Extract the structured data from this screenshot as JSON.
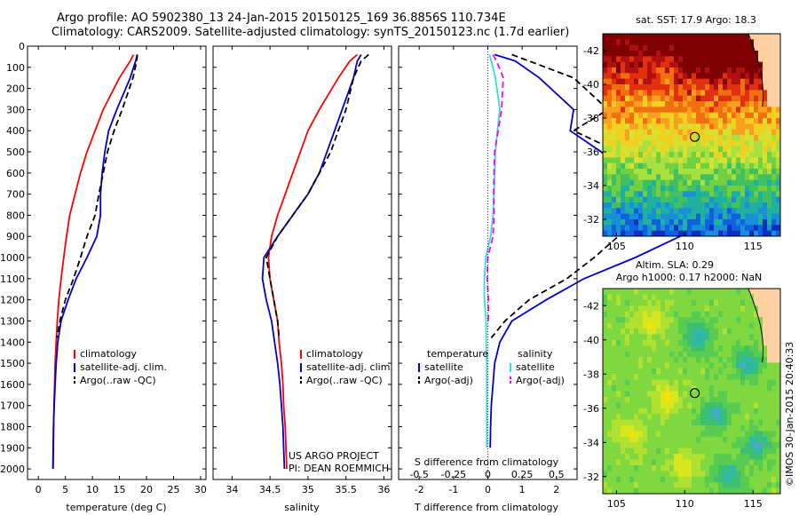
{
  "header": {
    "line1": "Argo profile: AO 5902380_13 24-Jan-2015 20150125_169 36.8856S 110.734E",
    "line2": "Climatology: CARS2009. Satellite-adjusted climatology: synTS_20150123.nc (1.7d earlier)"
  },
  "colors": {
    "climatology": "#ff0000",
    "satellite": "#0000cc",
    "argo": "#000000",
    "salinity_satellite": "#33dde8",
    "salinity_argo": "#ff00ff"
  },
  "panels": {
    "temperature": {
      "xlabel": "temperature (deg C)",
      "legend": [
        "climatology",
        "satellite-adj. clim.",
        "Argo(..raw -QC)"
      ]
    },
    "salinity": {
      "xlabel": "salinity",
      "legend": [
        "climatology",
        "satellite-adj. clim.",
        "Argo(..raw -QC)"
      ],
      "credit1": "US ARGO PROJECT",
      "credit2": "PI: DEAN ROEMMICH"
    },
    "difference": {
      "xlabel_bottom": "T difference from climatology",
      "xlabel_top": "S difference from climatology",
      "legend_temp_title": "temperature",
      "legend_sal_title": "salinity",
      "legend_items": [
        "satellite",
        "Argo(-adj)",
        "satellite",
        "Argo(-adj)"
      ]
    },
    "sst_map": {
      "title": "sat. SST: 17.9  Argo: 18.3"
    },
    "sla_map": {
      "title1": "Altim. SLA: 0.29",
      "title2": "Argo h1000: 0.17 h2000: NaN"
    },
    "imos": "©IMOS 30-Jan-2015 20:40:33"
  },
  "chart_data": [
    {
      "type": "line",
      "name": "temperature profile",
      "xlabel": "temperature (deg C)",
      "ylabel": "",
      "xlim": [
        -2,
        31
      ],
      "ylim": [
        2050,
        0
      ],
      "xticks": [
        0,
        5,
        10,
        15,
        20,
        25,
        30
      ],
      "yticks": [
        0,
        100,
        200,
        300,
        400,
        500,
        600,
        700,
        800,
        900,
        1000,
        1100,
        1200,
        1300,
        1400,
        1500,
        1600,
        1700,
        1800,
        1900,
        2000
      ],
      "series": [
        {
          "name": "climatology",
          "color": "#ff0000",
          "style": "solid",
          "x": [
            17.6,
            17.0,
            15.0,
            12.0,
            10.5,
            9.0,
            7.8,
            6.8,
            5.8,
            5.2,
            4.7,
            4.2,
            3.8,
            3.5,
            3.3,
            3.1,
            3.0,
            2.9,
            2.85,
            2.8,
            2.75
          ],
          "y": [
            40,
            70,
            150,
            300,
            400,
            500,
            600,
            700,
            800,
            900,
            1000,
            1100,
            1200,
            1300,
            1400,
            1500,
            1600,
            1700,
            1800,
            1900,
            2000
          ]
        },
        {
          "name": "satellite-adj. clim.",
          "color": "#0000cc",
          "style": "solid",
          "x": [
            18.3,
            18.0,
            17.0,
            14.5,
            13.0,
            12.3,
            11.8,
            11.5,
            11.5,
            10.8,
            9.0,
            7.0,
            5.5,
            4.2,
            3.6,
            3.3,
            3.1,
            2.95,
            2.8,
            2.75,
            2.7
          ],
          "y": [
            40,
            70,
            150,
            300,
            400,
            500,
            600,
            700,
            800,
            900,
            1000,
            1100,
            1200,
            1300,
            1400,
            1500,
            1600,
            1700,
            1800,
            1900,
            2000
          ]
        },
        {
          "name": "Argo(..raw -QC)",
          "color": "#000000",
          "style": "dashed",
          "x": [
            18.3,
            18.2,
            17.5,
            15.5,
            14.0,
            12.8,
            12.0,
            11.2,
            10.5,
            9.0,
            7.8,
            6.5,
            5.0,
            4.0,
            3.4
          ],
          "y": [
            40,
            70,
            150,
            300,
            400,
            500,
            600,
            700,
            800,
            900,
            1000,
            1100,
            1200,
            1300,
            1380
          ]
        }
      ]
    },
    {
      "type": "line",
      "name": "salinity profile",
      "xlabel": "salinity",
      "ylabel": "",
      "xlim": [
        33.75,
        36.1
      ],
      "ylim": [
        2050,
        0
      ],
      "xticks": [
        34,
        34.5,
        35,
        35.5,
        36
      ],
      "series": [
        {
          "name": "climatology",
          "color": "#ff0000",
          "style": "solid",
          "x": [
            35.65,
            35.55,
            35.4,
            35.15,
            35.0,
            34.9,
            34.8,
            34.7,
            34.6,
            34.52,
            34.48,
            34.5,
            34.55,
            34.6,
            34.62,
            34.65,
            34.67,
            34.68,
            34.7,
            34.71,
            34.72
          ],
          "y": [
            40,
            70,
            150,
            300,
            400,
            500,
            600,
            700,
            800,
            900,
            1000,
            1100,
            1200,
            1300,
            1400,
            1500,
            1600,
            1700,
            1800,
            1900,
            2000
          ]
        },
        {
          "name": "satellite-adj. clim.",
          "color": "#0000cc",
          "style": "solid",
          "x": [
            35.7,
            35.65,
            35.6,
            35.45,
            35.35,
            35.25,
            35.15,
            35.0,
            34.8,
            34.6,
            34.42,
            34.4,
            34.45,
            34.52,
            34.56,
            34.6,
            34.63,
            34.65,
            34.67,
            34.68,
            34.69
          ],
          "y": [
            40,
            70,
            150,
            300,
            400,
            500,
            600,
            700,
            800,
            900,
            1000,
            1100,
            1200,
            1300,
            1400,
            1500,
            1600,
            1700,
            1800,
            1900,
            2000
          ]
        },
        {
          "name": "Argo(..raw -QC)",
          "color": "#000000",
          "style": "dashed",
          "x": [
            35.8,
            35.7,
            35.6,
            35.5,
            35.4,
            35.3,
            35.15,
            35.0,
            34.8,
            34.6,
            34.45,
            34.5,
            34.55,
            34.6,
            34.62
          ],
          "y": [
            40,
            70,
            150,
            300,
            400,
            500,
            600,
            700,
            800,
            900,
            1000,
            1100,
            1200,
            1300,
            1380
          ]
        }
      ]
    },
    {
      "type": "line",
      "name": "difference from climatology",
      "xlabel": "T difference from climatology",
      "xlabel_top": "S difference from climatology",
      "xlim": [
        -2.6,
        2.6
      ],
      "ylim": [
        2050,
        0
      ],
      "xticks_bottom": [
        -2,
        -1,
        0,
        1,
        2
      ],
      "xticks_top": [
        -0.5,
        -0.25,
        0,
        0.25,
        0.5
      ],
      "series": [
        {
          "name": "temperature satellite",
          "color": "#0000cc",
          "style": "solid",
          "x": [
            0.2,
            0.8,
            1.5,
            2.5,
            2.4,
            3.3,
            4.0,
            4.7,
            5.7,
            5.6,
            4.3,
            2.8,
            1.7,
            0.7,
            0.35,
            0.2,
            0.15,
            0.1,
            0.08,
            0.07
          ],
          "y": [
            40,
            70,
            150,
            300,
            400,
            500,
            600,
            700,
            800,
            900,
            1000,
            1100,
            1200,
            1300,
            1400,
            1500,
            1600,
            1700,
            1800,
            1900
          ]
        },
        {
          "name": "temperature Argo(-adj)",
          "color": "#000000",
          "style": "dashed",
          "x": [
            0.7,
            1.2,
            2.5,
            3.5,
            2.5,
            3.8,
            4.2,
            4.4,
            4.7,
            3.8,
            3.1,
            2.3,
            1.2,
            0.5,
            0.1
          ],
          "y": [
            40,
            70,
            150,
            300,
            400,
            500,
            600,
            700,
            800,
            900,
            1000,
            1100,
            1200,
            1300,
            1380
          ]
        },
        {
          "name": "salinity satellite",
          "color": "#33dde8",
          "style": "solid",
          "x": [
            0.05,
            0.1,
            0.22,
            0.35,
            0.28,
            0.22,
            0.2,
            0.18,
            0.15,
            0.08,
            -0.06,
            -0.1,
            -0.1,
            -0.05,
            -0.05,
            -0.03,
            -0.03,
            -0.03,
            -0.03,
            -0.03
          ],
          "y": [
            40,
            70,
            150,
            300,
            400,
            500,
            600,
            700,
            800,
            900,
            1000,
            1100,
            1200,
            1300,
            1400,
            1500,
            1600,
            1700,
            1800,
            1900
          ]
        },
        {
          "name": "salinity Argo(-adj)",
          "color": "#ff00ff",
          "style": "dashed",
          "x": [
            0.15,
            0.25,
            0.45,
            0.4,
            0.3,
            0.2,
            0.18,
            0.17,
            0.18,
            0.15,
            0.0,
            -0.02,
            0.02,
            0.01
          ],
          "y": [
            40,
            70,
            150,
            300,
            400,
            500,
            600,
            700,
            800,
            900,
            1000,
            1100,
            1200,
            1300
          ]
        }
      ]
    },
    {
      "type": "heatmap",
      "name": "sat. SST map",
      "title": "sat. SST: 17.9  Argo: 18.3",
      "xlim": [
        104,
        117
      ],
      "ylim": [
        -43,
        -31
      ],
      "xticks": [
        105,
        110,
        115
      ],
      "yticks": [
        -32,
        -34,
        -36,
        -38,
        -40,
        -42
      ],
      "argo_position": [
        110.734,
        -36.8856
      ]
    },
    {
      "type": "heatmap",
      "name": "altimeter SLA map",
      "title": "Altim. SLA: 0.29",
      "xlim": [
        104,
        117
      ],
      "ylim": [
        -43,
        -31
      ],
      "xticks": [
        105,
        110,
        115
      ],
      "yticks": [
        -32,
        -34,
        -36,
        -38,
        -40,
        -42
      ],
      "argo_position": [
        110.734,
        -36.8856
      ]
    }
  ]
}
